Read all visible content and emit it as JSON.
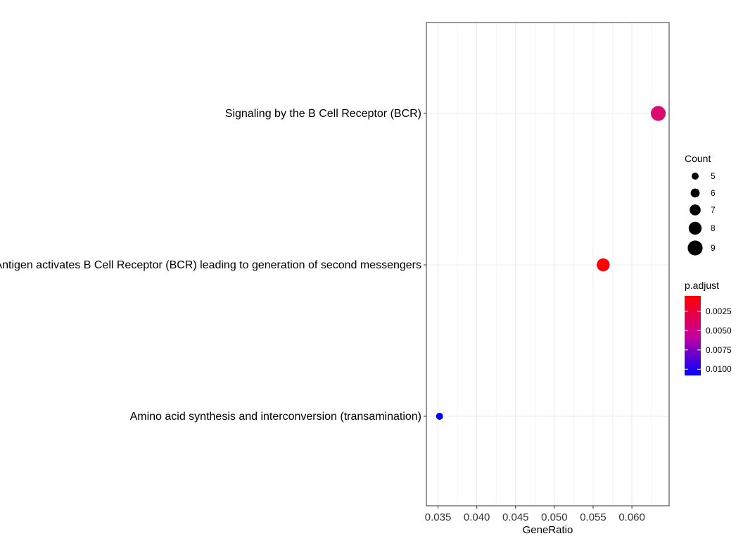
{
  "chart_data": {
    "type": "scatter",
    "title": "",
    "xlabel": "GeneRatio",
    "ylabel": "",
    "xlim": [
      0.0335,
      0.0648
    ],
    "x_ticks": [
      0.035,
      0.04,
      0.045,
      0.05,
      0.055,
      0.06
    ],
    "x_tick_labels": [
      "0.035",
      "0.040",
      "0.045",
      "0.050",
      "0.055",
      "0.060"
    ],
    "grid": true,
    "categories": [
      "Signaling by the B Cell Receptor (BCR)",
      "Antigen activates B Cell Receptor (BCR) leading to generation of second messengers",
      "Amino acid synthesis and interconversion (transamination)"
    ],
    "points": [
      {
        "category": "Signaling by the B Cell Receptor (BCR)",
        "gene_ratio": 0.0634,
        "count": 9,
        "p_adjust": 0.0016,
        "color": "#dc0a6e"
      },
      {
        "category": "Antigen activates B Cell Receptor (BCR) leading to generation of second messengers",
        "gene_ratio": 0.0563,
        "count": 8,
        "p_adjust": 0.0006,
        "color": "#ff0000"
      },
      {
        "category": "Amino acid synthesis and interconversion (transamination)",
        "gene_ratio": 0.0352,
        "count": 5,
        "p_adjust": 0.0106,
        "color": "#0000ff"
      }
    ],
    "size_legend": {
      "title": "Count",
      "entries": [
        {
          "label": "5",
          "value": 5
        },
        {
          "label": "6",
          "value": 6
        },
        {
          "label": "7",
          "value": 7
        },
        {
          "label": "8",
          "value": 8
        },
        {
          "label": "9",
          "value": 9
        }
      ]
    },
    "color_legend": {
      "title": "p.adjust",
      "low_color": "#ff0000",
      "high_color": "#0000ff",
      "range": [
        0.0005,
        0.0108
      ],
      "ticks": [
        {
          "label": "0.0025",
          "value": 0.0025
        },
        {
          "label": "0.0050",
          "value": 0.005
        },
        {
          "label": "0.0075",
          "value": 0.0075
        },
        {
          "label": "0.0100",
          "value": 0.01
        }
      ]
    },
    "legend_position": "right"
  }
}
